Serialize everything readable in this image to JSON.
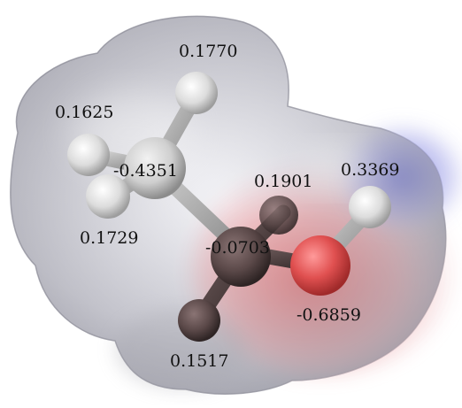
{
  "charges": {
    "h_top": "0.1770",
    "h_left": "0.1625",
    "h_lower_left": "0.1729",
    "c_methyl": "-0.4351",
    "h_right_top": "0.1901",
    "h_hydroxyl": "0.3369",
    "c_center": "-0.0703",
    "o_hydroxyl": "-0.6859",
    "h_bottom": "0.1517"
  },
  "colors": {
    "negative_potential": "#e05a60",
    "positive_potential": "#7b7fe0",
    "neutral_surface": "#e9e9ee",
    "carbon_atom": "#d8d8d8",
    "hydrogen_atom": "#ececec",
    "oxygen_atom": "#d84848",
    "dark_atom": "#4a3c3c"
  }
}
